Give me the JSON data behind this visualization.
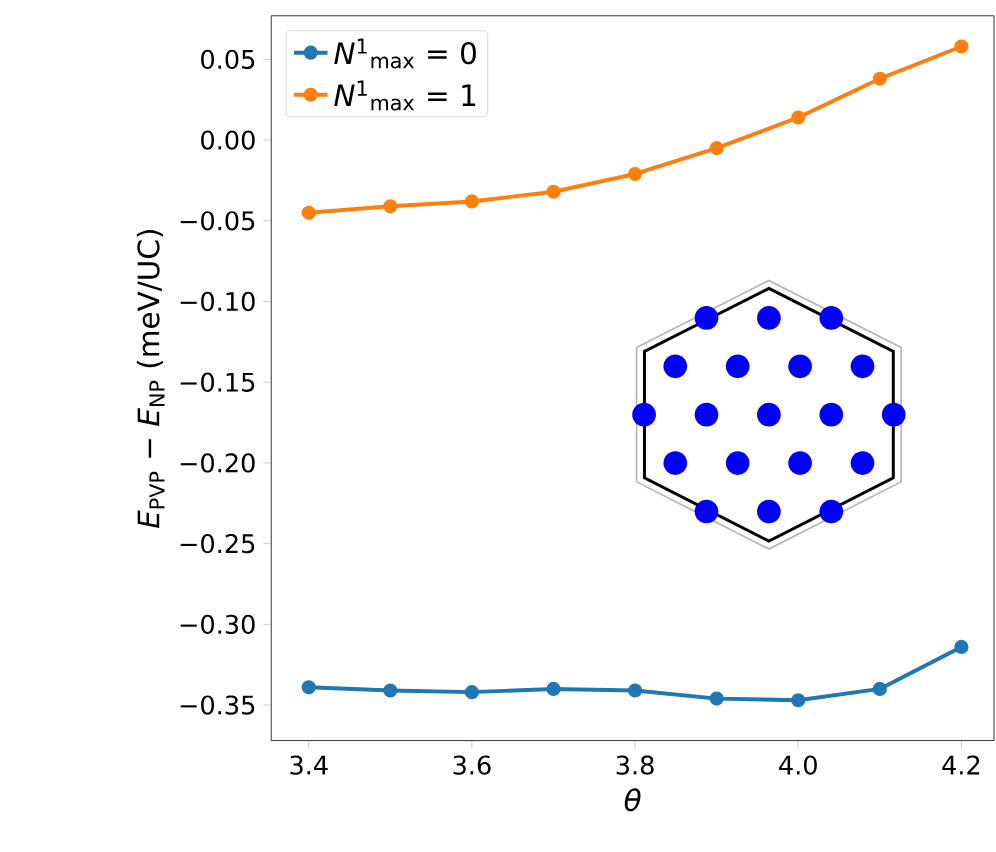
{
  "chart_data": {
    "type": "line",
    "xlabel": "*θ*",
    "ylabel": "*E*$_{PVP}$ − *E*$_{NP}$ (meV/UC)",
    "x": [
      3.4,
      3.5,
      3.6,
      3.7,
      3.8,
      3.9,
      4.0,
      4.1,
      4.2
    ],
    "series": [
      {
        "name": "*N*$^{1}$$_{max}$ = 0",
        "color": "#1f77b4",
        "values": [
          -0.339,
          -0.341,
          -0.342,
          -0.34,
          -0.341,
          -0.346,
          -0.347,
          -0.34,
          -0.314
        ]
      },
      {
        "name": "*N*$^{1}$$_{max}$ = 1",
        "color": "#ff7f0e",
        "values": [
          -0.045,
          -0.041,
          -0.038,
          -0.032,
          -0.021,
          -0.005,
          0.014,
          0.038,
          0.058
        ]
      }
    ],
    "xlim": [
      3.354,
      4.24
    ],
    "ylim": [
      -0.372,
      0.077
    ],
    "xticks": [
      {
        "value": 3.4,
        "label": "3.4"
      },
      {
        "value": 3.6,
        "label": "3.6"
      },
      {
        "value": 3.8,
        "label": "3.8"
      },
      {
        "value": 4.0,
        "label": "4.0"
      },
      {
        "value": 4.2,
        "label": "4.2"
      }
    ],
    "yticks": [
      {
        "value": -0.35,
        "label": "−0.35"
      },
      {
        "value": -0.3,
        "label": "−0.30"
      },
      {
        "value": -0.25,
        "label": "−0.25"
      },
      {
        "value": -0.2,
        "label": "−0.20"
      },
      {
        "value": -0.15,
        "label": "−0.15"
      },
      {
        "value": -0.1,
        "label": "−0.10"
      },
      {
        "value": -0.05,
        "label": "−0.05"
      },
      {
        "value": 0.0,
        "label": "0.00"
      },
      {
        "value": 0.05,
        "label": "0.05"
      }
    ],
    "legend": "top left",
    "marker": "circle",
    "line_style": "solid",
    "grid": false
  }
}
